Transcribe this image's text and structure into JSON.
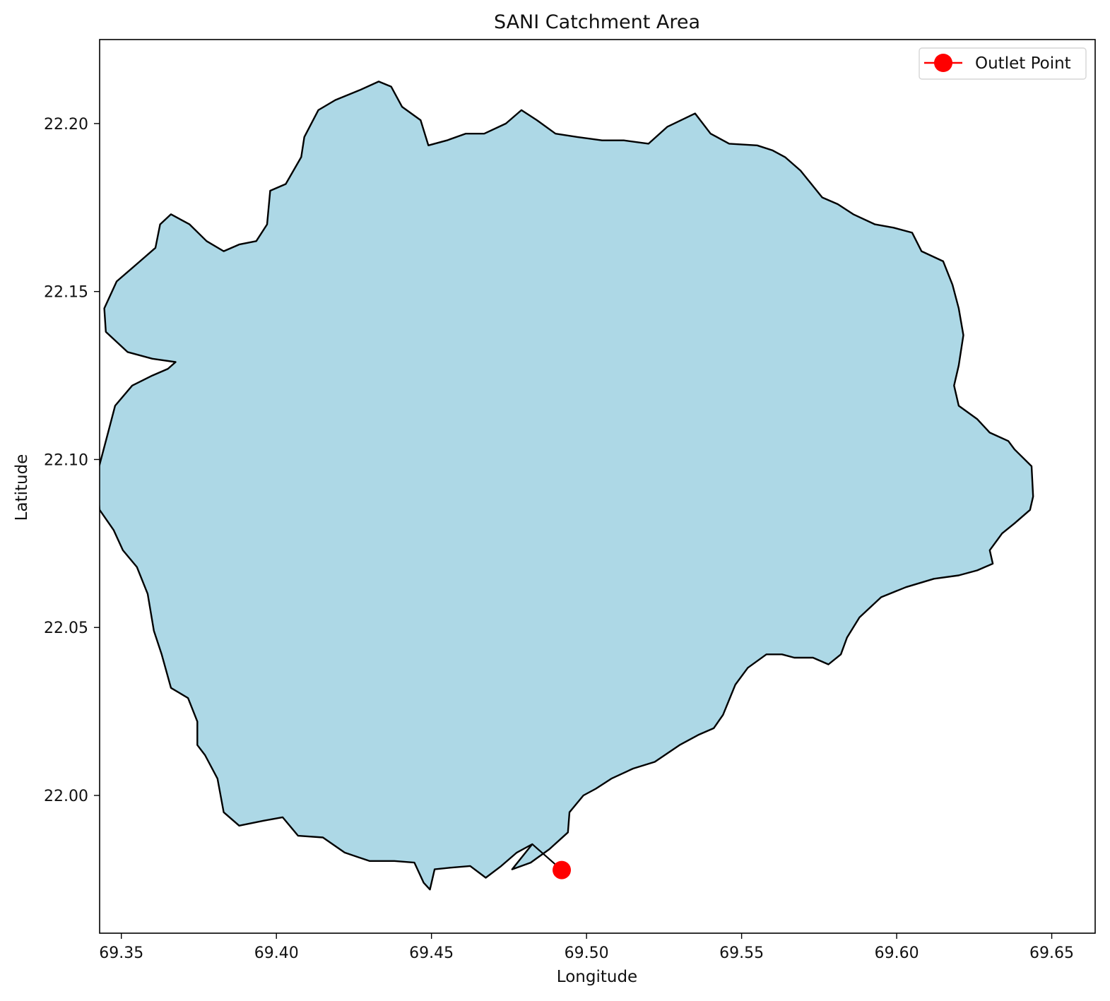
{
  "chart_data": {
    "type": "map",
    "title": "SANI Catchment Area",
    "xlabel": "Longitude",
    "ylabel": "Latitude",
    "xlim": [
      69.343,
      69.664
    ],
    "ylim": [
      21.959,
      22.225
    ],
    "x_ticks": [
      69.35,
      69.4,
      69.45,
      69.5,
      69.55,
      69.6,
      69.65
    ],
    "x_tick_labels": [
      "69.35",
      "69.40",
      "69.45",
      "69.50",
      "69.55",
      "69.60",
      "69.65"
    ],
    "y_ticks": [
      22.0,
      22.05,
      22.1,
      22.15,
      22.2
    ],
    "y_tick_labels": [
      "22.00",
      "22.05",
      "22.10",
      "22.15",
      "22.20"
    ],
    "grid": false,
    "legend": {
      "position": "top-right",
      "entries": [
        {
          "label": "Outlet Point",
          "color": "#ff0000"
        }
      ]
    },
    "catchment": {
      "fill_color": "#add8e6",
      "edge_color": "#000000",
      "boundary": [
        [
          69.4825,
          21.9855
        ],
        [
          69.4775,
          21.983
        ],
        [
          69.4725,
          21.979
        ],
        [
          69.4675,
          21.9755
        ],
        [
          69.4625,
          21.979
        ],
        [
          69.456,
          21.9785
        ],
        [
          69.451,
          21.978
        ],
        [
          69.4495,
          21.972
        ],
        [
          69.4475,
          21.974
        ],
        [
          69.4445,
          21.98
        ],
        [
          69.438,
          21.9805
        ],
        [
          69.43,
          21.9805
        ],
        [
          69.422,
          21.983
        ],
        [
          69.415,
          21.9875
        ],
        [
          69.407,
          21.988
        ],
        [
          69.402,
          21.9935
        ],
        [
          69.396,
          21.9925
        ],
        [
          69.388,
          21.991
        ],
        [
          69.383,
          21.995
        ],
        [
          69.381,
          22.005
        ],
        [
          69.377,
          22.012
        ],
        [
          69.3745,
          22.015
        ],
        [
          69.3745,
          22.022
        ],
        [
          69.3715,
          22.029
        ],
        [
          69.366,
          22.032
        ],
        [
          69.363,
          22.042
        ],
        [
          69.3605,
          22.049
        ],
        [
          69.3585,
          22.06
        ],
        [
          69.355,
          22.068
        ],
        [
          69.3505,
          22.073
        ],
        [
          69.3475,
          22.079
        ],
        [
          69.343,
          22.085
        ],
        [
          69.342,
          22.095
        ],
        [
          69.344,
          22.102
        ],
        [
          69.346,
          22.109
        ],
        [
          69.348,
          22.116
        ],
        [
          69.3535,
          22.122
        ],
        [
          69.36,
          22.125
        ],
        [
          69.365,
          22.127
        ],
        [
          69.3675,
          22.129
        ],
        [
          69.36,
          22.13
        ],
        [
          69.352,
          22.132
        ],
        [
          69.345,
          22.138
        ],
        [
          69.3445,
          22.145
        ],
        [
          69.3485,
          22.153
        ],
        [
          69.356,
          22.159
        ],
        [
          69.361,
          22.163
        ],
        [
          69.3625,
          22.17
        ],
        [
          69.366,
          22.173
        ],
        [
          69.372,
          22.17
        ],
        [
          69.3775,
          22.165
        ],
        [
          69.383,
          22.162
        ],
        [
          69.388,
          22.164
        ],
        [
          69.3935,
          22.165
        ],
        [
          69.397,
          22.17
        ],
        [
          69.398,
          22.18
        ],
        [
          69.403,
          22.182
        ],
        [
          69.408,
          22.19
        ],
        [
          69.409,
          22.196
        ],
        [
          69.4135,
          22.204
        ],
        [
          69.419,
          22.207
        ],
        [
          69.427,
          22.21
        ],
        [
          69.433,
          22.2125
        ],
        [
          69.437,
          22.211
        ],
        [
          69.4405,
          22.205
        ],
        [
          69.4465,
          22.201
        ],
        [
          69.449,
          22.1935
        ],
        [
          69.455,
          22.195
        ],
        [
          69.461,
          22.197
        ],
        [
          69.467,
          22.197
        ],
        [
          69.474,
          22.2
        ],
        [
          69.479,
          22.204
        ],
        [
          69.484,
          22.201
        ],
        [
          69.49,
          22.197
        ],
        [
          69.497,
          22.196
        ],
        [
          69.505,
          22.195
        ],
        [
          69.512,
          22.195
        ],
        [
          69.52,
          22.194
        ],
        [
          69.526,
          22.199
        ],
        [
          69.535,
          22.203
        ],
        [
          69.54,
          22.197
        ],
        [
          69.546,
          22.194
        ],
        [
          69.555,
          22.1935
        ],
        [
          69.56,
          22.192
        ],
        [
          69.564,
          22.19
        ],
        [
          69.569,
          22.186
        ],
        [
          69.576,
          22.178
        ],
        [
          69.581,
          22.176
        ],
        [
          69.586,
          22.173
        ],
        [
          69.593,
          22.17
        ],
        [
          69.599,
          22.169
        ],
        [
          69.605,
          22.1675
        ],
        [
          69.608,
          22.162
        ],
        [
          69.615,
          22.159
        ],
        [
          69.618,
          22.152
        ],
        [
          69.62,
          22.145
        ],
        [
          69.6215,
          22.137
        ],
        [
          69.62,
          22.128
        ],
        [
          69.6185,
          22.122
        ],
        [
          69.62,
          22.116
        ],
        [
          69.626,
          22.112
        ],
        [
          69.63,
          22.108
        ],
        [
          69.636,
          22.1055
        ],
        [
          69.638,
          22.103
        ],
        [
          69.6435,
          22.098
        ],
        [
          69.644,
          22.089
        ],
        [
          69.643,
          22.085
        ],
        [
          69.638,
          22.081
        ],
        [
          69.634,
          22.078
        ],
        [
          69.63,
          22.073
        ],
        [
          69.631,
          22.069
        ],
        [
          69.626,
          22.067
        ],
        [
          69.62,
          22.0655
        ],
        [
          69.612,
          22.0645
        ],
        [
          69.603,
          22.062
        ],
        [
          69.595,
          22.059
        ],
        [
          69.588,
          22.053
        ],
        [
          69.584,
          22.047
        ],
        [
          69.582,
          22.042
        ],
        [
          69.578,
          22.039
        ],
        [
          69.573,
          22.041
        ],
        [
          69.567,
          22.041
        ],
        [
          69.563,
          22.042
        ],
        [
          69.558,
          22.042
        ],
        [
          69.552,
          22.038
        ],
        [
          69.548,
          22.033
        ],
        [
          69.544,
          22.024
        ],
        [
          69.541,
          22.02
        ],
        [
          69.536,
          22.018
        ],
        [
          69.53,
          22.015
        ],
        [
          69.522,
          22.01
        ],
        [
          69.515,
          22.008
        ],
        [
          69.508,
          22.005
        ],
        [
          69.503,
          22.002
        ],
        [
          69.499,
          22.0
        ],
        [
          69.4945,
          21.995
        ],
        [
          69.494,
          21.989
        ],
        [
          69.488,
          21.984
        ],
        [
          69.485,
          21.982
        ],
        [
          69.482,
          21.98
        ],
        [
          69.479,
          21.979
        ],
        [
          69.476,
          21.978
        ]
      ]
    },
    "outlet": {
      "name": "Outlet Point",
      "x": 69.492,
      "y": 21.9778,
      "color": "#ff0000"
    }
  }
}
